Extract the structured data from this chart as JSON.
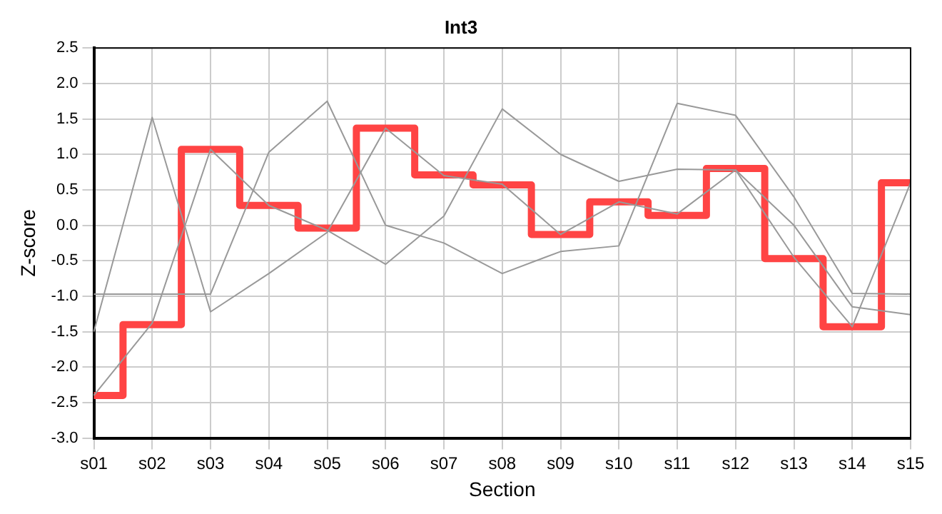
{
  "chart_data": {
    "type": "line",
    "title": "Int3",
    "xlabel": "Section",
    "ylabel": "Z-score",
    "categories": [
      "s01",
      "s02",
      "s03",
      "s04",
      "s05",
      "s06",
      "s07",
      "s08",
      "s09",
      "s10",
      "s11",
      "s12",
      "s13",
      "s14",
      "s15"
    ],
    "ylim": [
      -3.0,
      2.5
    ],
    "yticks": [
      {
        "value": -3,
        "label": "-3.0"
      },
      {
        "value": -2.5,
        "label": "-2.5"
      },
      {
        "value": -2,
        "label": "-2.0"
      },
      {
        "value": -1.5,
        "label": "-1.5"
      },
      {
        "value": -1,
        "label": "-1.0"
      },
      {
        "value": -0.5,
        "label": "-0.5"
      },
      {
        "value": 0,
        "label": "0.0"
      },
      {
        "value": 0.5,
        "label": "0.5"
      },
      {
        "value": 1,
        "label": "1.0"
      },
      {
        "value": 1.5,
        "label": "1.5"
      },
      {
        "value": 2,
        "label": "2.0"
      },
      {
        "value": 2.5,
        "label": "2.5"
      }
    ],
    "grid": true,
    "legend": false,
    "marker": "none",
    "line_style": "solid",
    "series": [
      {
        "color": "#999999",
        "values": [
          -1.5,
          1.52,
          -1.22,
          -0.68,
          -0.1,
          1.37,
          0.7,
          0.58,
          -0.13,
          0.33,
          0.16,
          0.78,
          -0.45,
          -1.43,
          0.6
        ]
      },
      {
        "color": "#999999",
        "values": [
          -2.4,
          -1.38,
          1.07,
          0.28,
          -0.07,
          -0.55,
          0.13,
          1.64,
          1.0,
          0.62,
          0.79,
          0.78,
          0.0,
          -1.15,
          -1.26
        ]
      },
      {
        "color": "#999999",
        "values": [
          -0.97,
          -0.97,
          -0.97,
          1.03,
          1.75,
          0.0,
          -0.25,
          -0.68,
          -0.37,
          -0.29,
          1.72,
          1.55,
          0.4,
          -0.96,
          -0.97
        ]
      },
      {
        "type": "step",
        "color": "#ff4444",
        "values": [
          -2.4,
          -1.4,
          1.07,
          0.28,
          -0.04,
          1.37,
          0.71,
          0.57,
          -0.13,
          0.33,
          0.14,
          0.8,
          -0.47,
          -1.43,
          0.6
        ]
      }
    ]
  }
}
